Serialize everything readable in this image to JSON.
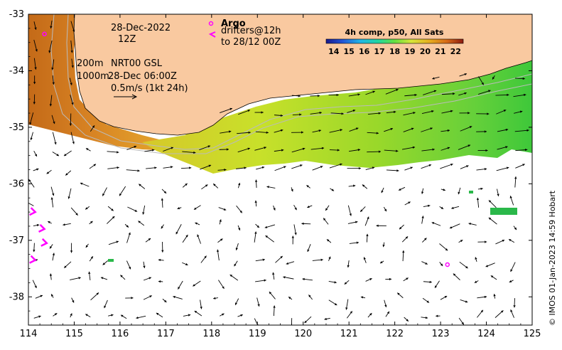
{
  "map": {
    "type": "ocean-current-sst-map",
    "xlim": [
      114,
      125
    ],
    "ylim": [
      -38.5,
      -33
    ],
    "x_ticks": [
      "114",
      "115",
      "116",
      "117",
      "118",
      "119",
      "120",
      "121",
      "122",
      "123",
      "124",
      "125"
    ],
    "y_ticks": [
      "-33",
      "-34",
      "-35",
      "-36",
      "-37",
      "-38"
    ],
    "colors": {
      "land": "#f9c9a0",
      "ocean": "#ffffff",
      "arrow": "#000000",
      "drifter": "#ff00ff",
      "contour": "#bbbbbb"
    }
  },
  "annotations": {
    "date_line1": "28-Dec-2022",
    "date_line2": "12Z",
    "depth_200": "200m",
    "depth_1000": "1000m",
    "product": "NRT00 GSL",
    "product_time": "28-Dec 06:00Z",
    "scale": "0.5m/s (1kt 24h)",
    "argo_label": "Argo",
    "drifters_line1": "drifters@12h",
    "drifters_line2": "to 28/12 00Z"
  },
  "colorbar": {
    "title": "4h comp, p50, All Sats",
    "ticks": [
      "14",
      "15",
      "16",
      "17",
      "18",
      "19",
      "20",
      "21",
      "22"
    ],
    "range": [
      13.5,
      22.5
    ]
  },
  "credit": "© IMOS 01-Jan-2023 14:59 Hobart",
  "markers": {
    "argo_floats": [
      {
        "lon": 114.35,
        "lat": -33.35
      },
      {
        "lon": 123.15,
        "lat": -37.43
      }
    ],
    "drifters": [
      {
        "lon": 114.15,
        "lat": -36.5
      },
      {
        "lon": 114.35,
        "lat": -36.8
      },
      {
        "lon": 114.4,
        "lat": -37.05
      },
      {
        "lon": 114.15,
        "lat": -37.35
      }
    ]
  }
}
